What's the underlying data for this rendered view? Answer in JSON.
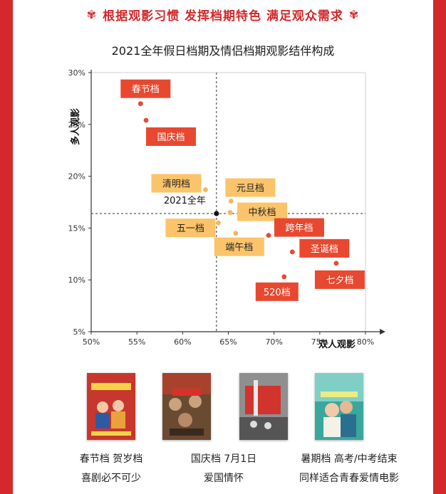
{
  "banner": {
    "text": "根据观影习惯 发挥档期特色 满足观众需求"
  },
  "chart_data": {
    "type": "scatter",
    "title": "2021全年假日档期及情侣档期观影结伴构成",
    "xlabel": "双人观影",
    "ylabel": "多人观影",
    "xlim": [
      50,
      80
    ],
    "ylim": [
      5,
      30
    ],
    "xticks": [
      "50%",
      "55%",
      "60%",
      "65%",
      "70%",
      "75%",
      "80%"
    ],
    "yticks": [
      "5%",
      "10%",
      "15%",
      "20%",
      "25%",
      "30%"
    ],
    "reference": {
      "name": "2021全年",
      "x": 63.7,
      "y": 16.4
    },
    "points": [
      {
        "name": "春节档",
        "x": 55.4,
        "y": 27.0,
        "group": "red"
      },
      {
        "name": "国庆档",
        "x": 56.0,
        "y": 25.4,
        "group": "red"
      },
      {
        "name": "清明档",
        "x": 62.5,
        "y": 18.7,
        "group": "orange"
      },
      {
        "name": "元旦档",
        "x": 65.3,
        "y": 17.6,
        "group": "orange"
      },
      {
        "name": "中秋档",
        "x": 65.2,
        "y": 16.5,
        "group": "orange"
      },
      {
        "name": "五一档",
        "x": 63.9,
        "y": 15.5,
        "group": "orange"
      },
      {
        "name": "端午档",
        "x": 65.8,
        "y": 14.5,
        "group": "orange"
      },
      {
        "name": "跨年档",
        "x": 69.4,
        "y": 14.3,
        "group": "red"
      },
      {
        "name": "圣诞档",
        "x": 72.0,
        "y": 12.7,
        "group": "red"
      },
      {
        "name": "七夕档",
        "x": 76.8,
        "y": 11.6,
        "group": "red"
      },
      {
        "name": "520档",
        "x": 71.1,
        "y": 10.3,
        "group": "red"
      }
    ],
    "grid": false,
    "legend": "none"
  },
  "colors": {
    "red_label": "#e8482f",
    "orange_label": "#fbc46a",
    "red_point": "#e8482f",
    "orange_point": "#f9b55a",
    "reference_point": "#111111",
    "banner": "#d4282a"
  },
  "posters": [
    {
      "name": "hi-mom-poster",
      "caption1": "春节档 贺岁档",
      "caption2": "喜剧必不可少"
    },
    {
      "name": "my-country-poster",
      "caption1": "国庆档 7月1日",
      "caption2": "爱国情怀"
    },
    {
      "name": "summer-poster",
      "caption1": "暑期档 高考/中考结束",
      "caption2": "同样适合青春爱情电影"
    }
  ]
}
